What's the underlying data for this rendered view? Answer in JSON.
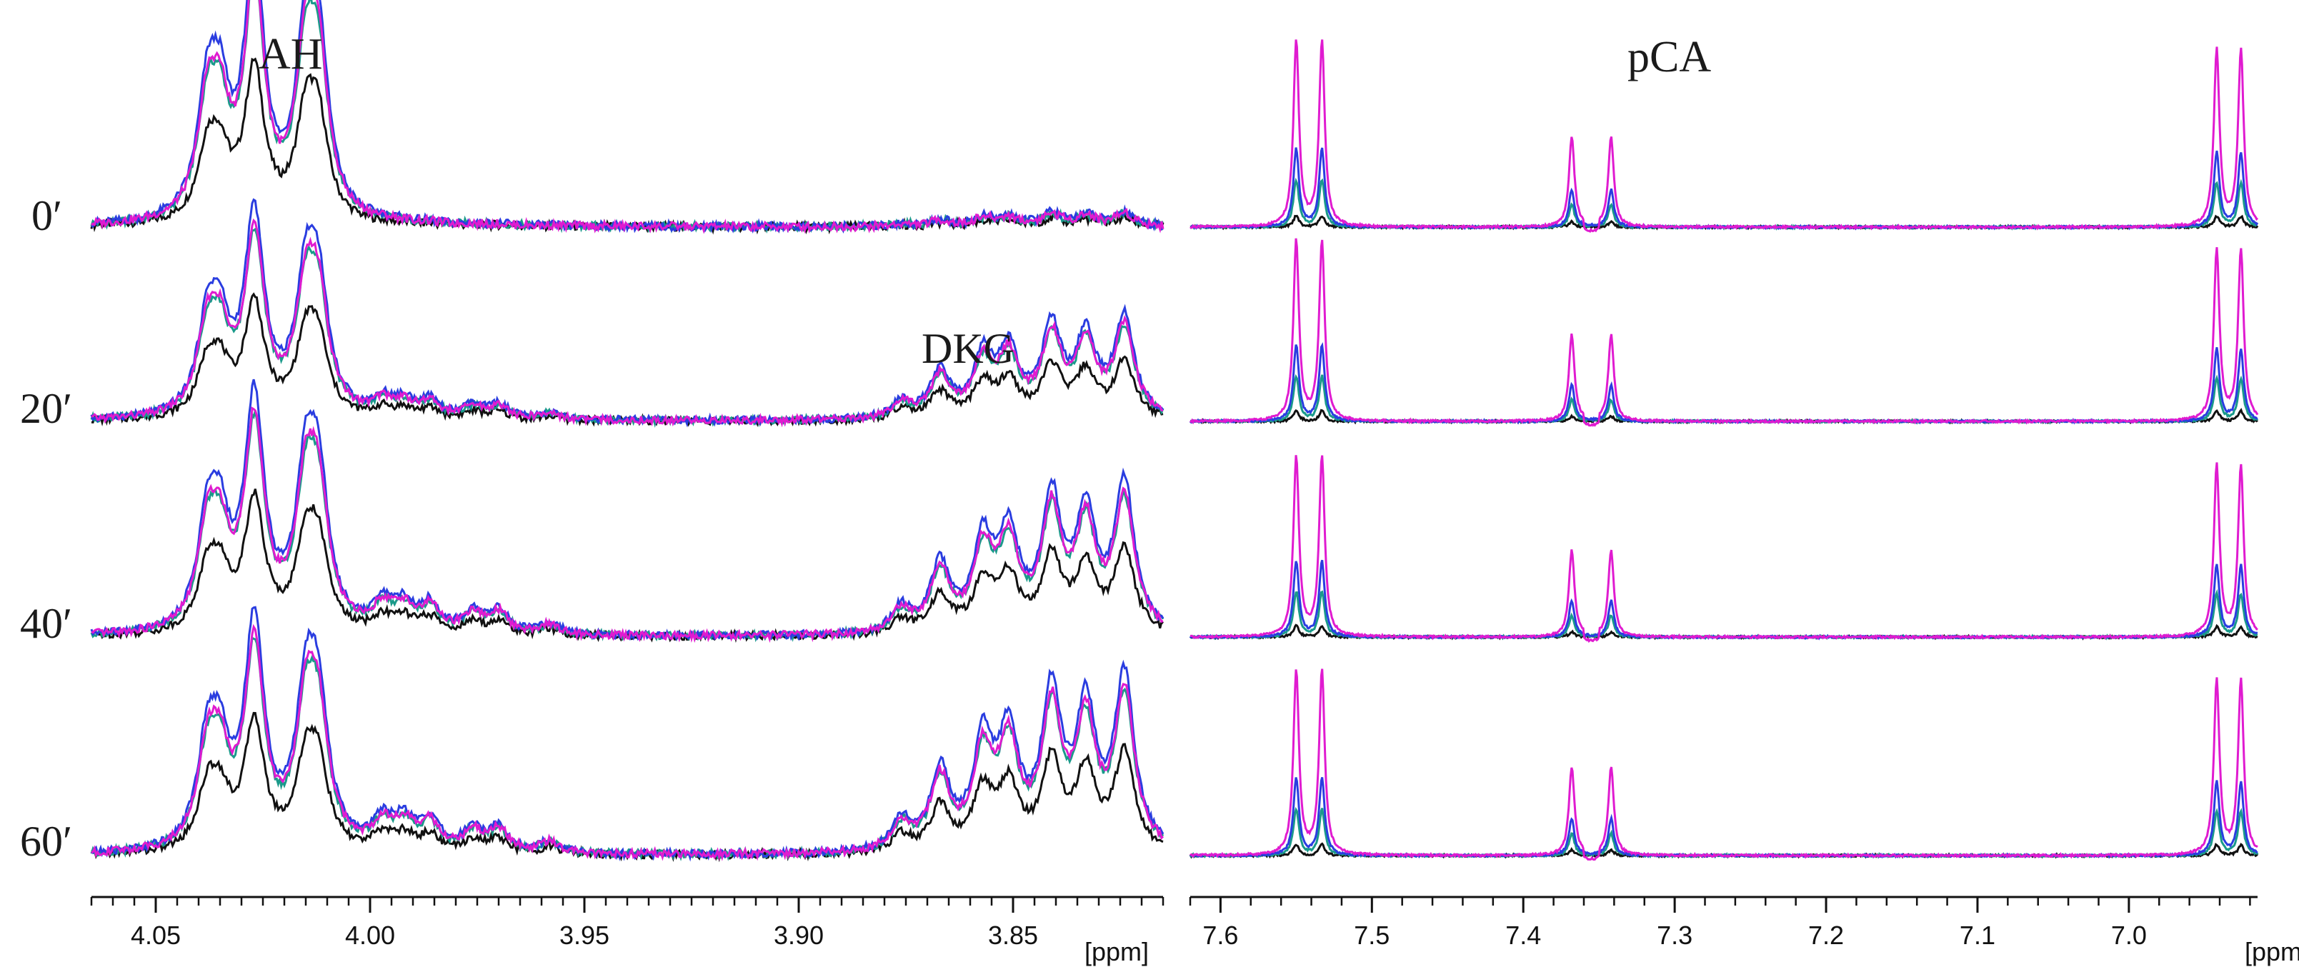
{
  "chart_data": [
    {
      "type": "line",
      "panel": "left",
      "title": "",
      "xlabel": "[ppm]",
      "ylabel": "",
      "x_reversed": true,
      "xlim": [
        4.065,
        3.815
      ],
      "xticks": [
        4.05,
        4.0,
        3.95,
        3.9,
        3.85
      ],
      "xtick_labels": [
        "4.05",
        "4.00",
        "3.95",
        "3.90",
        "3.85"
      ],
      "time_labels": [
        "0′",
        "20′",
        "40′",
        "60′"
      ],
      "annotations": [
        {
          "text": "AH",
          "x": 4.018,
          "trace": 0
        },
        {
          "text": "DKG",
          "x": 3.853,
          "trace": 1
        }
      ],
      "series_colors": [
        "#111111",
        "#1a9a8a",
        "#2a3de0",
        "#e01bd0"
      ],
      "peaks": {
        "AH": [
          {
            "x": 4.038,
            "h": 0.42
          },
          {
            "x": 4.035,
            "h": 0.38
          },
          {
            "x": 4.027,
            "h": 1.0
          },
          {
            "x": 4.015,
            "h": 0.62
          },
          {
            "x": 4.012,
            "h": 0.58
          }
        ],
        "mid": [
          {
            "x": 3.997,
            "h": 0.12
          },
          {
            "x": 3.992,
            "h": 0.11
          },
          {
            "x": 3.986,
            "h": 0.12
          },
          {
            "x": 3.976,
            "h": 0.09
          },
          {
            "x": 3.97,
            "h": 0.1
          },
          {
            "x": 3.958,
            "h": 0.05
          }
        ],
        "DKG": [
          {
            "x": 3.876,
            "h": 0.12
          },
          {
            "x": 3.867,
            "h": 0.32
          },
          {
            "x": 3.857,
            "h": 0.42
          },
          {
            "x": 3.851,
            "h": 0.45
          },
          {
            "x": 3.841,
            "h": 0.62
          },
          {
            "x": 3.833,
            "h": 0.55
          },
          {
            "x": 3.824,
            "h": 0.7
          }
        ]
      },
      "trace_intensity": {
        "AH": [
          1.0,
          0.85,
          0.95,
          0.9
        ],
        "DKG": [
          0.08,
          0.62,
          0.88,
          1.0
        ],
        "mid": [
          0.05,
          0.6,
          0.95,
          1.0
        ]
      },
      "series_scale": [
        0.62,
        0.95,
        1.08,
        0.98
      ]
    },
    {
      "type": "line",
      "panel": "right",
      "title": "pCA",
      "xlabel": "[ppm]",
      "ylabel": "",
      "x_reversed": true,
      "xlim": [
        7.62,
        6.915
      ],
      "xticks": [
        7.6,
        7.5,
        7.4,
        7.3,
        7.2,
        7.1,
        7.0
      ],
      "xtick_labels": [
        "7.6",
        "7.5",
        "7.4",
        "7.3",
        "7.2",
        "7.1",
        "7.0"
      ],
      "series_colors": [
        "#111111",
        "#1a9a8a",
        "#2a3de0",
        "#e01bd0"
      ],
      "peaks": [
        {
          "x": 7.55,
          "h": 1.0
        },
        {
          "x": 7.533,
          "h": 1.0
        },
        {
          "x": 7.368,
          "h": 0.48
        },
        {
          "x": 7.342,
          "h": 0.48
        },
        {
          "x": 6.942,
          "h": 0.95
        },
        {
          "x": 6.926,
          "h": 0.95
        }
      ],
      "series_scale": [
        0.0,
        0.25,
        0.42,
        1.0
      ],
      "trace_scale": [
        1.0,
        1.0,
        1.0,
        1.0
      ]
    }
  ]
}
